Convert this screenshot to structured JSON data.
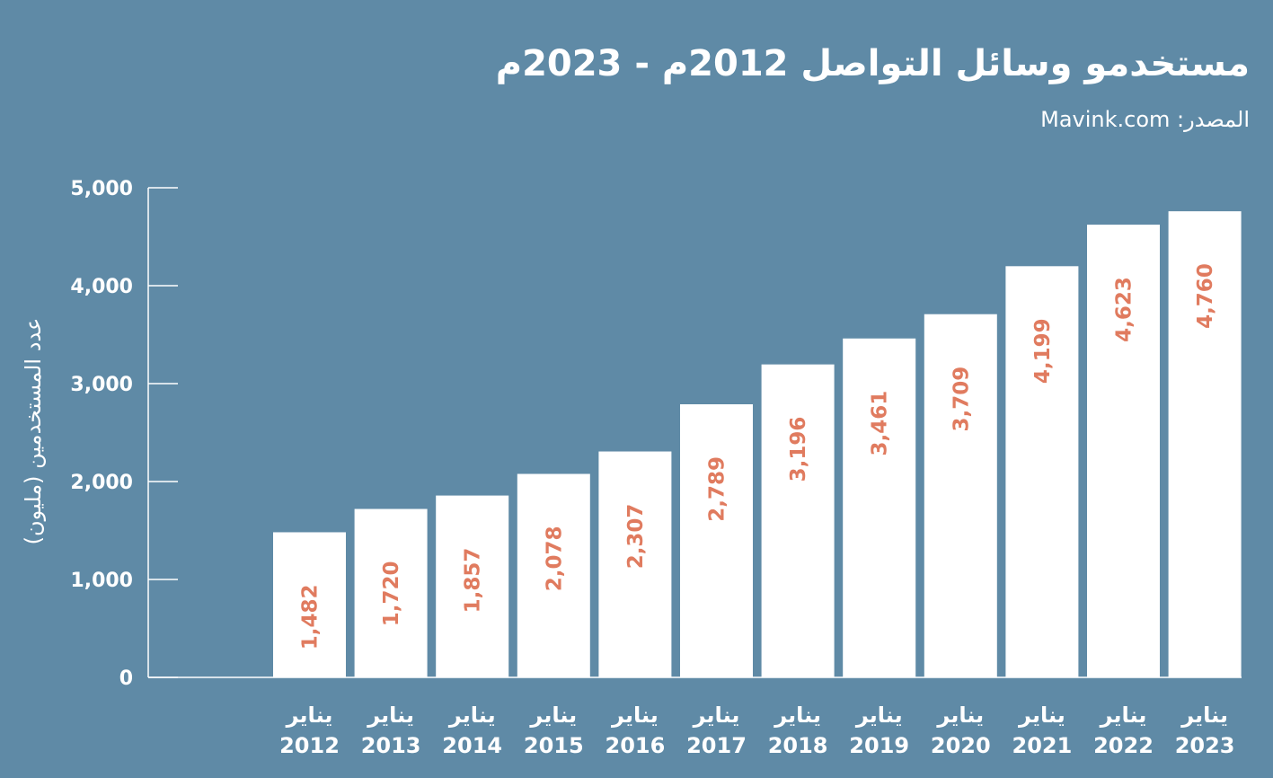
{
  "colors": {
    "background": "#5f8aa6",
    "bar": "#ffffff",
    "value_label": "#e07b5f",
    "text": "#ffffff",
    "axis": "#ffffff"
  },
  "chart_data": {
    "type": "bar",
    "title": "مستخدمو وسائل التواصل 2012م - 2023م",
    "source": "المصدر: Mavink.com",
    "ylabel": "عدد المستخدمين (مليون)",
    "xlabel": "",
    "ylim": [
      0,
      5000
    ],
    "yticks": [
      {
        "value": 0,
        "label": "0"
      },
      {
        "value": 1000,
        "label": "1,000"
      },
      {
        "value": 2000,
        "label": "2,000"
      },
      {
        "value": 3000,
        "label": "3,000"
      },
      {
        "value": 4000,
        "label": "4,000"
      },
      {
        "value": 5000,
        "label": "5,000"
      }
    ],
    "grid": false,
    "categories": [
      {
        "month": "يناير",
        "year": "2012"
      },
      {
        "month": "يناير",
        "year": "2013"
      },
      {
        "month": "يناير",
        "year": "2014"
      },
      {
        "month": "يناير",
        "year": "2015"
      },
      {
        "month": "يناير",
        "year": "2016"
      },
      {
        "month": "يناير",
        "year": "2017"
      },
      {
        "month": "يناير",
        "year": "2018"
      },
      {
        "month": "يناير",
        "year": "2019"
      },
      {
        "month": "يناير",
        "year": "2020"
      },
      {
        "month": "يناير",
        "year": "2021"
      },
      {
        "month": "يناير",
        "year": "2022"
      },
      {
        "month": "يناير",
        "year": "2023"
      }
    ],
    "values": [
      1482,
      1720,
      1857,
      2078,
      2307,
      2789,
      3196,
      3461,
      3709,
      4199,
      4623,
      4760
    ],
    "value_labels": [
      "1,482",
      "1,720",
      "1,857",
      "2,078",
      "2,307",
      "2,789",
      "3,196",
      "3,461",
      "3,709",
      "4,199",
      "4,623",
      "4,760"
    ]
  }
}
